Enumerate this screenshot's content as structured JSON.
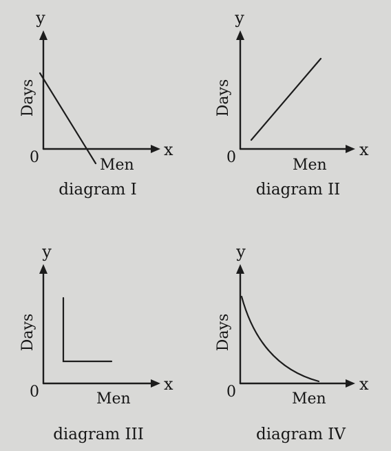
{
  "diagrams": [
    {
      "caption": "diagram I",
      "x_letter": "x",
      "y_letter": "y",
      "x_name": "Men",
      "y_name": "Days",
      "origin": "0",
      "shape": "decreasing-line"
    },
    {
      "caption": "diagram II",
      "x_letter": "x",
      "y_letter": "y",
      "x_name": "Men",
      "y_name": "Days",
      "origin": "0",
      "shape": "increasing-line"
    },
    {
      "caption": "diagram III",
      "x_letter": "x",
      "y_letter": "y",
      "x_name": "Men",
      "y_name": "Days",
      "origin": "0",
      "shape": "l-shape"
    },
    {
      "caption": "diagram IV",
      "x_letter": "x",
      "y_letter": "y",
      "x_name": "Men",
      "y_name": "Days",
      "origin": "0",
      "shape": "decreasing-curve"
    }
  ],
  "colors": {
    "ink": "#1c1c1c",
    "paper": "#d9d9d7"
  }
}
